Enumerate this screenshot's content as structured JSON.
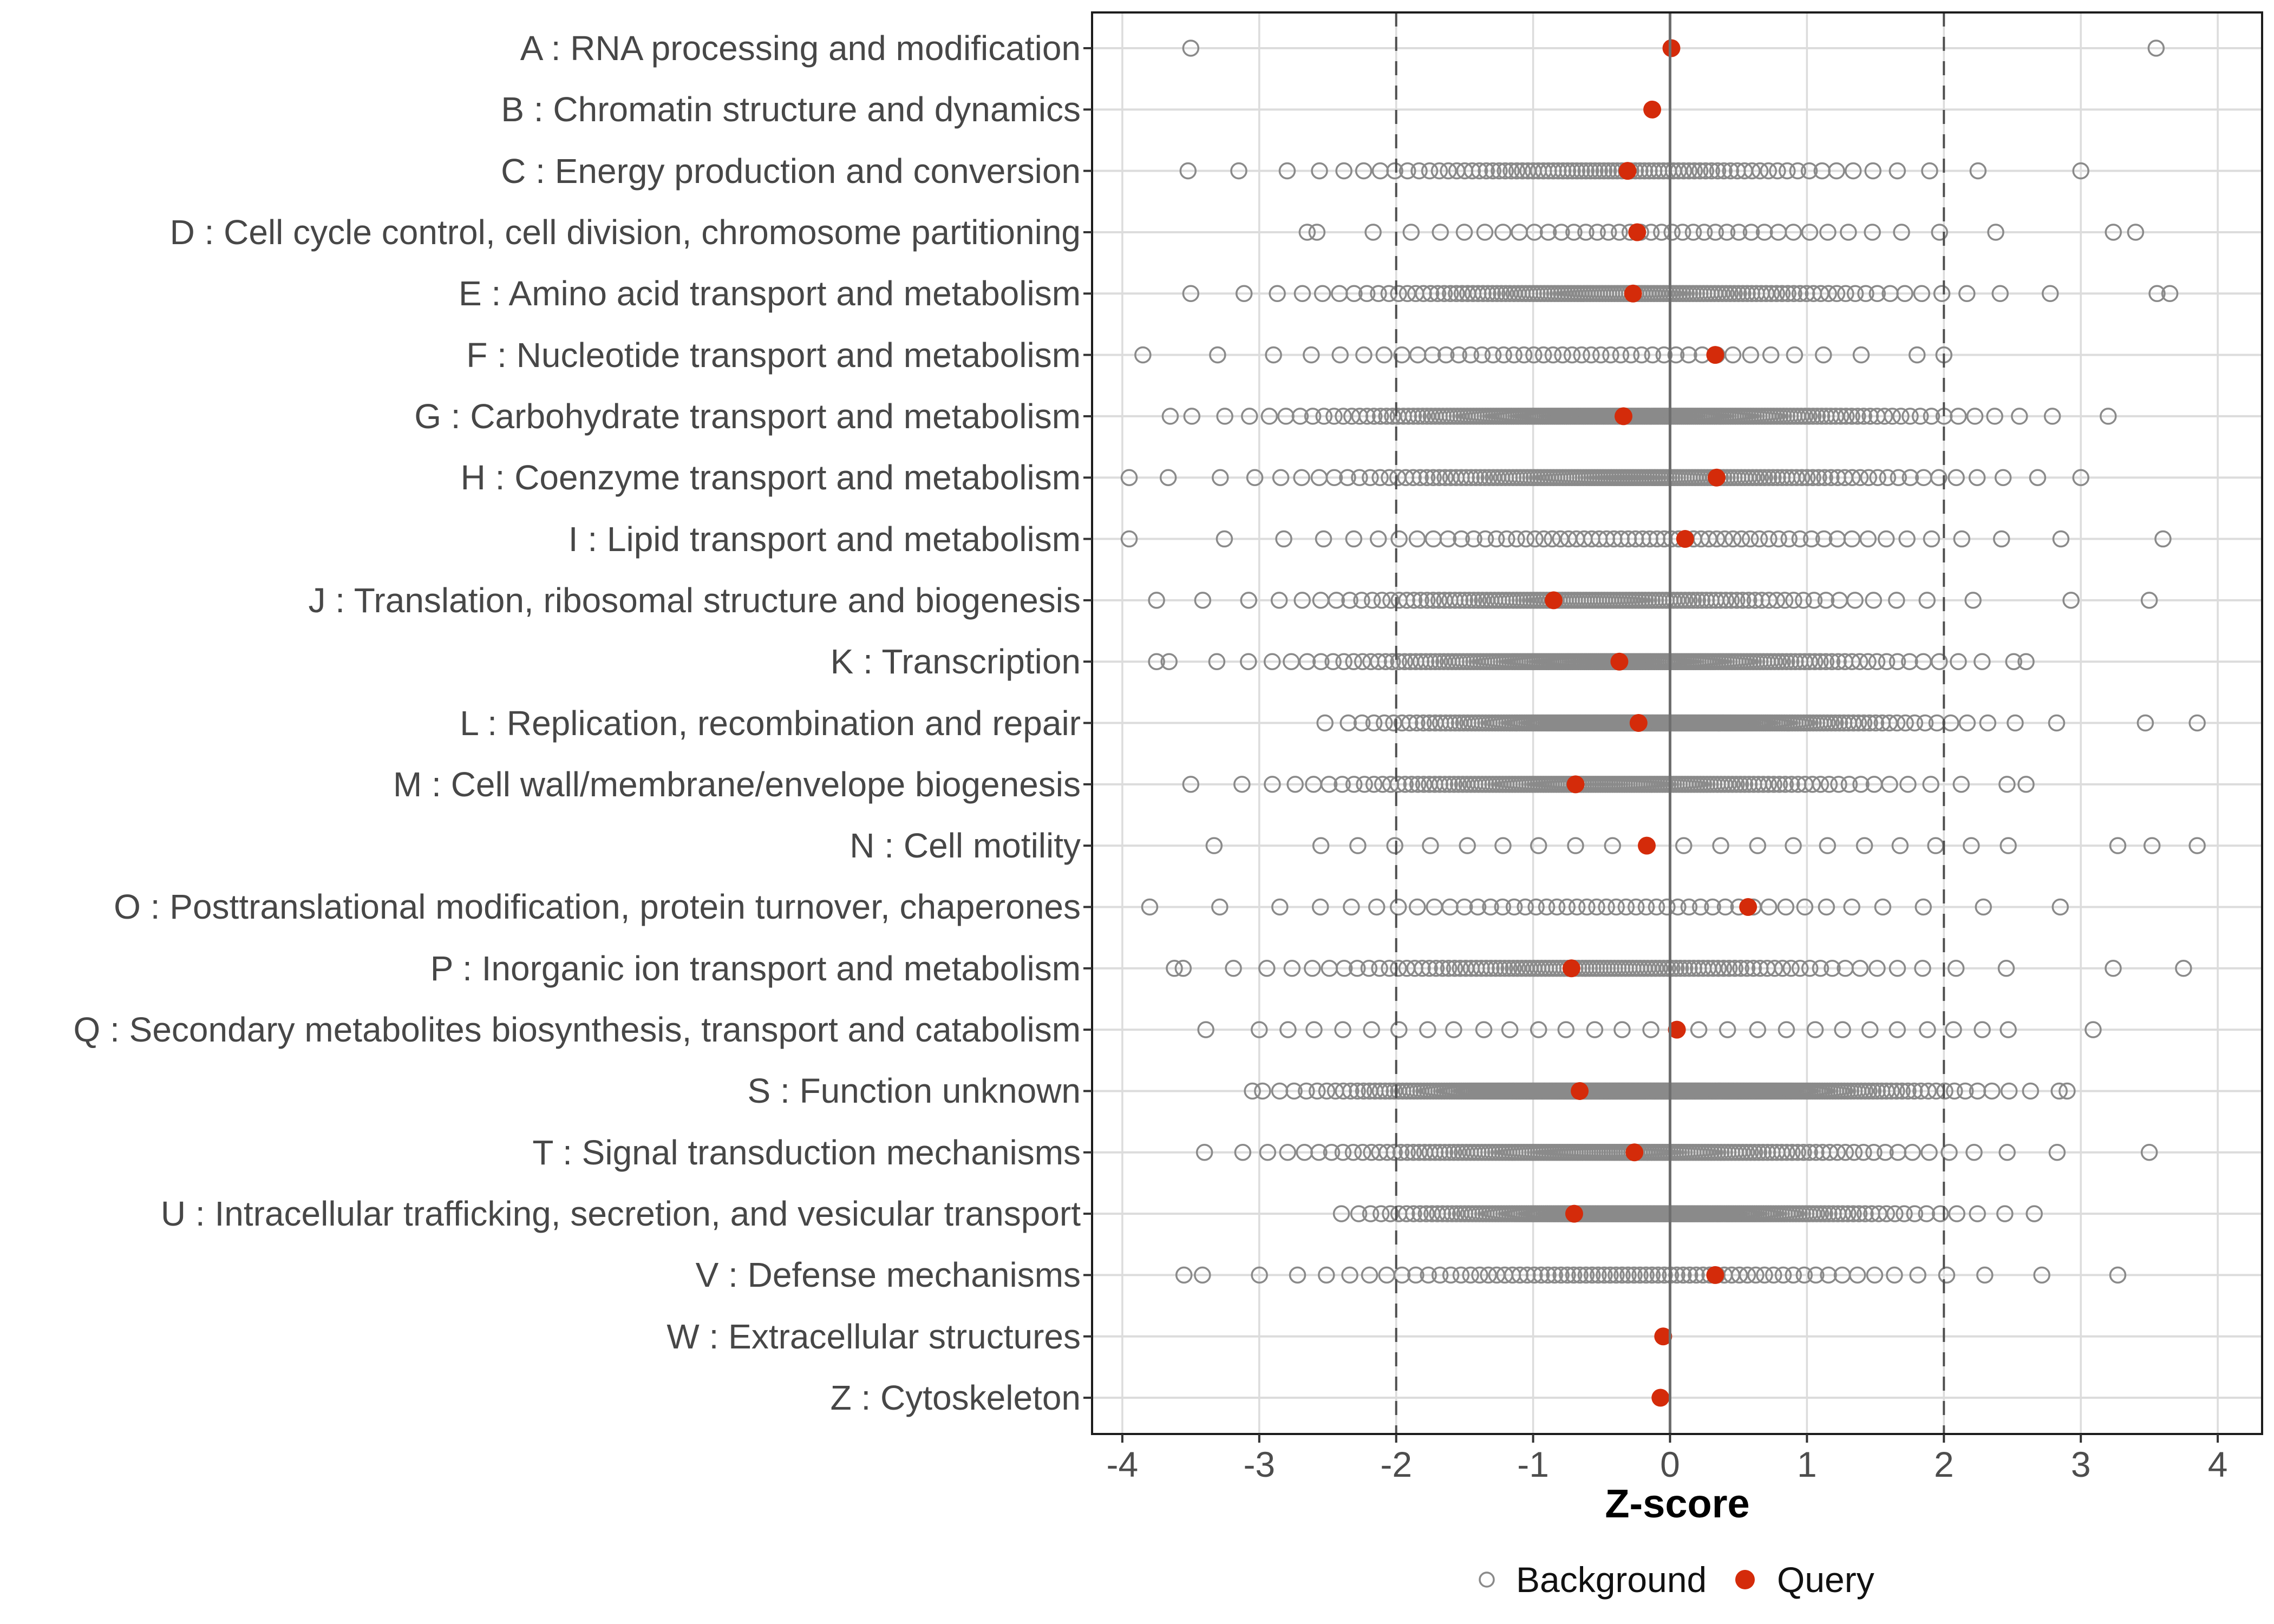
{
  "figure": {
    "x_axis_title": "Z-score",
    "legend": {
      "background_label": "Background",
      "query_label": "Query"
    }
  },
  "colors": {
    "query_dot": "#d42b0a",
    "background_circle_stroke": "#8a8a8a",
    "gridline": "#dcdcdc",
    "zero_line": "#6e6e6e",
    "dashed_line": "#4f4f4f",
    "panel_border": "#1c1c1c",
    "tick_mark": "#333333",
    "axis_text": "#4d4d4d",
    "category_text": "#474747"
  },
  "chart_data": {
    "type": "scatter",
    "subtype": "categorical-strip-plot",
    "title": "",
    "xlabel": "Z-score",
    "ylabel": "",
    "xlim": [
      -4.3,
      4.35
    ],
    "x_ticks": [
      -4,
      -3,
      -2,
      -1,
      0,
      1,
      2,
      3,
      4
    ],
    "grid": true,
    "legend_position": "bottom",
    "legend_entries": [
      "Background",
      "Query"
    ],
    "reference_lines": {
      "solid_at": 0,
      "dashed_at": [
        -2,
        2
      ]
    },
    "series_note": "query = red filled dot z-score per category; background = open gray circles, summarized by n/mean/sd/min/max (quantile-reconstructed) or explicit points",
    "categories": [
      {
        "code": "A",
        "name": "RNA processing and modification",
        "label": "A : RNA processing and modification",
        "query": 0.01,
        "background": {
          "points": [
            -3.5,
            3.55
          ]
        }
      },
      {
        "code": "B",
        "name": "Chromatin structure and dynamics",
        "label": "B : Chromatin structure and dynamics",
        "query": -0.13,
        "background": {
          "points": []
        }
      },
      {
        "code": "C",
        "name": "Energy production and conversion",
        "label": "C : Energy production and conversion",
        "query": -0.31,
        "background": {
          "n": 85,
          "mean": -0.45,
          "sd": 1.15,
          "min": -3.52,
          "max": 3.0
        }
      },
      {
        "code": "D",
        "name": "Cell cycle control, cell division, chromosome partitioning",
        "label": "D : Cell cycle control, cell division, chromosome partitioning",
        "query": -0.24,
        "background": {
          "n": 42,
          "mean": -0.1,
          "sd": 1.3,
          "min": -2.65,
          "max": 3.4
        }
      },
      {
        "code": "E",
        "name": "Amino acid transport and metabolism",
        "label": "E : Amino acid transport and metabolism",
        "query": -0.27,
        "background": {
          "n": 130,
          "mean": -0.35,
          "sd": 1.2,
          "min": -3.5,
          "max": 3.65
        }
      },
      {
        "code": "F",
        "name": "Nucleotide transport and metabolism",
        "label": "F : Nucleotide transport and metabolism",
        "query": 0.33,
        "background": {
          "n": 46,
          "mean": -0.75,
          "sd": 1.3,
          "min": -3.85,
          "max": 2.0
        }
      },
      {
        "code": "G",
        "name": "Carbohydrate transport and metabolism",
        "label": "G : Carbohydrate transport and metabolism",
        "query": -0.34,
        "background": {
          "n": 220,
          "mean": -0.35,
          "sd": 1.2,
          "min": -3.65,
          "max": 3.2
        }
      },
      {
        "code": "H",
        "name": "Coenzyme transport and metabolism",
        "label": "H : Coenzyme transport and metabolism",
        "query": 0.34,
        "background": {
          "n": 150,
          "mean": -0.3,
          "sd": 1.25,
          "min": -3.95,
          "max": 3.0
        }
      },
      {
        "code": "I",
        "name": "Lipid transport and metabolism",
        "label": "I : Lipid transport and metabolism",
        "query": 0.11,
        "background": {
          "n": 65,
          "mean": -0.2,
          "sd": 1.4,
          "min": -3.95,
          "max": 3.6
        }
      },
      {
        "code": "J",
        "name": "Translation, ribosomal structure and biogenesis",
        "label": "J : Translation, ribosomal structure and biogenesis",
        "query": -0.85,
        "background": {
          "n": 120,
          "mean": -0.6,
          "sd": 1.1,
          "min": -3.75,
          "max": 3.5
        }
      },
      {
        "code": "K",
        "name": "Transcription",
        "label": "K : Transcription",
        "query": -0.37,
        "background": {
          "n": 190,
          "mean": -0.4,
          "sd": 1.15,
          "min": -3.75,
          "max": 2.6
        }
      },
      {
        "code": "L",
        "name": "Replication, recombination and repair",
        "label": "L : Replication, recombination and repair",
        "query": -0.23,
        "background": {
          "n": 240,
          "mean": -0.15,
          "sd": 1.0,
          "min": -2.52,
          "max": 3.85
        }
      },
      {
        "code": "M",
        "name": "Cell wall/membrane/envelope biogenesis",
        "label": "M : Cell wall/membrane/envelope biogenesis",
        "query": -0.69,
        "background": {
          "n": 150,
          "mean": -0.5,
          "sd": 1.1,
          "min": -3.5,
          "max": 2.6
        }
      },
      {
        "code": "N",
        "name": "Cell motility",
        "label": "N : Cell motility",
        "query": -0.17,
        "background": {
          "points": [
            -3.33,
            -2.55,
            -2.28,
            -2.01,
            -1.75,
            -1.48,
            -1.22,
            -0.96,
            -0.69,
            -0.42,
            0.1,
            0.37,
            0.64,
            0.9,
            1.15,
            1.42,
            1.68,
            1.94,
            2.2,
            2.47,
            3.27,
            3.52,
            3.85
          ]
        }
      },
      {
        "code": "O",
        "name": "Posttranslational modification, protein turnover, chaperones",
        "label": "O : Posttranslational modification, protein turnover, chaperones",
        "query": 0.57,
        "background": {
          "n": 48,
          "mean": -0.5,
          "sd": 1.4,
          "min": -3.8,
          "max": 2.85
        }
      },
      {
        "code": "P",
        "name": "Inorganic ion transport and metabolism",
        "label": "P : Inorganic ion transport and metabolism",
        "query": -0.72,
        "background": {
          "n": 110,
          "mean": -0.55,
          "sd": 1.2,
          "min": -3.62,
          "max": 3.75
        }
      },
      {
        "code": "Q",
        "name": "Secondary metabolites biosynthesis, transport and catabolism",
        "label": "Q : Secondary metabolites biosynthesis, transport and catabolism",
        "query": 0.05,
        "background": {
          "points": [
            -3.39,
            -3.0,
            -2.79,
            -2.6,
            -2.39,
            -2.18,
            -1.98,
            -1.77,
            -1.58,
            -1.36,
            -1.17,
            -0.96,
            -0.76,
            -0.55,
            -0.35,
            -0.14,
            0.21,
            0.42,
            0.64,
            0.85,
            1.06,
            1.26,
            1.46,
            1.66,
            1.88,
            2.07,
            2.28,
            2.47,
            3.09
          ]
        }
      },
      {
        "code": "S",
        "name": "Function unknown",
        "label": "S : Function unknown",
        "query": -0.66,
        "background": {
          "n": 380,
          "mean": -0.25,
          "sd": 1.05,
          "min": -3.05,
          "max": 2.9
        }
      },
      {
        "code": "T",
        "name": "Signal transduction mechanisms",
        "label": "T : Signal transduction mechanisms",
        "query": -0.26,
        "background": {
          "n": 160,
          "mean": -0.45,
          "sd": 1.2,
          "min": -3.4,
          "max": 3.5
        }
      },
      {
        "code": "U",
        "name": "Intracellular trafficking, secretion, and vesicular transport",
        "label": "U : Intracellular trafficking, secretion, and vesicular transport",
        "query": -0.7,
        "background": {
          "n": 230,
          "mean": -0.2,
          "sd": 1.0,
          "min": -2.4,
          "max": 2.66
        }
      },
      {
        "code": "V",
        "name": "Defense mechanisms",
        "label": "V : Defense mechanisms",
        "query": 0.33,
        "background": {
          "n": 75,
          "mean": -0.35,
          "sd": 1.35,
          "min": -3.55,
          "max": 3.27
        }
      },
      {
        "code": "W",
        "name": "Extracellular structures",
        "label": "W : Extracellular structures",
        "query": -0.05,
        "background": {
          "points": []
        }
      },
      {
        "code": "Z",
        "name": "Cytoskeleton",
        "label": "Z : Cytoskeleton",
        "query": -0.07,
        "background": {
          "points": []
        }
      }
    ]
  }
}
